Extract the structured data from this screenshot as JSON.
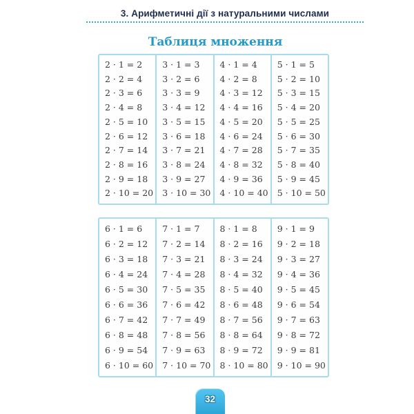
{
  "header": {
    "label": "3. Арифметичні дії з натуральними числами"
  },
  "title": {
    "label": "Таблиця множення"
  },
  "footer": {
    "page_number": "32"
  },
  "colors": {
    "header-text": "#1e2c4f",
    "title-text": "#2499cb",
    "table-border": "#a6dcee",
    "equation-text": "#3b3b3b",
    "dotted-line": "#35a9b8",
    "badge-top": "#55c5ef",
    "badge-bottom": "#2ea5d8",
    "badge-text": "#ffffff"
  },
  "multiplication_tables": [
    {
      "name": "table-2-to-5",
      "columns": [
        {
          "factor": 2,
          "equations": [
            "2 · 1 = 2",
            "2 · 2 = 4",
            "2 · 3 = 6",
            "2 · 4 = 8",
            "2 · 5 = 10",
            "2 · 6 = 12",
            "2 · 7 = 14",
            "2 · 8 = 16",
            "2 · 9 = 18",
            "2 · 10 = 20"
          ]
        },
        {
          "factor": 3,
          "equations": [
            "3 · 1 = 3",
            "3 · 2 = 6",
            "3 · 3 = 9",
            "3 · 4 = 12",
            "3 · 5 = 15",
            "3 · 6 = 18",
            "3 · 7 = 21",
            "3 · 8 = 24",
            "3 · 9 = 27",
            "3 · 10 = 30"
          ]
        },
        {
          "factor": 4,
          "equations": [
            "4 · 1 = 4",
            "4 · 2 = 8",
            "4 · 3 = 12",
            "4 · 4 = 16",
            "4 · 5 = 20",
            "4 · 6 = 24",
            "4 · 7 = 28",
            "4 · 8 = 32",
            "4 · 9 = 36",
            "4 · 10 = 40"
          ]
        },
        {
          "factor": 5,
          "equations": [
            "5 · 1 = 5",
            "5 · 2 = 10",
            "5 · 3 = 15",
            "5 · 4 = 20",
            "5 · 5 = 25",
            "5 · 6 = 30",
            "5 · 7 = 35",
            "5 · 8 = 40",
            "5 · 9 = 45",
            "5 · 10 = 50"
          ]
        }
      ]
    },
    {
      "name": "table-6-to-9",
      "columns": [
        {
          "factor": 6,
          "equations": [
            "6 · 1 = 6",
            "6 · 2 = 12",
            "6 · 3 = 18",
            "6 · 4 = 24",
            "6 · 5 = 30",
            "6 · 6 = 36",
            "6 · 7 = 42",
            "6 · 8 = 48",
            "6 · 9 = 54",
            "6 · 10 = 60"
          ]
        },
        {
          "factor": 7,
          "equations": [
            "7 · 1 = 7",
            "7 · 2 = 14",
            "7 · 3 = 21",
            "7 · 4 = 28",
            "7 · 5 = 35",
            "7 · 6 = 42",
            "7 · 7 = 49",
            "7 · 8 = 56",
            "7 · 9 = 63",
            "7 · 10 = 70"
          ]
        },
        {
          "factor": 8,
          "equations": [
            "8 · 1 = 8",
            "8 · 2 = 16",
            "8 · 3 = 24",
            "8 · 4 = 32",
            "8 · 5 = 40",
            "8 · 6 = 48",
            "8 · 7 = 56",
            "8 · 8 = 64",
            "8 · 9 = 72",
            "8 · 10 = 80"
          ]
        },
        {
          "factor": 9,
          "equations": [
            "9 · 1 = 9",
            "9 · 2 = 18",
            "9 · 3 = 27",
            "9 · 4 = 36",
            "9 · 5 = 45",
            "9 · 6 = 54",
            "9 · 7 = 63",
            "9 · 8 = 72",
            "9 · 9 = 81",
            "9 · 10 = 90"
          ]
        }
      ]
    }
  ]
}
